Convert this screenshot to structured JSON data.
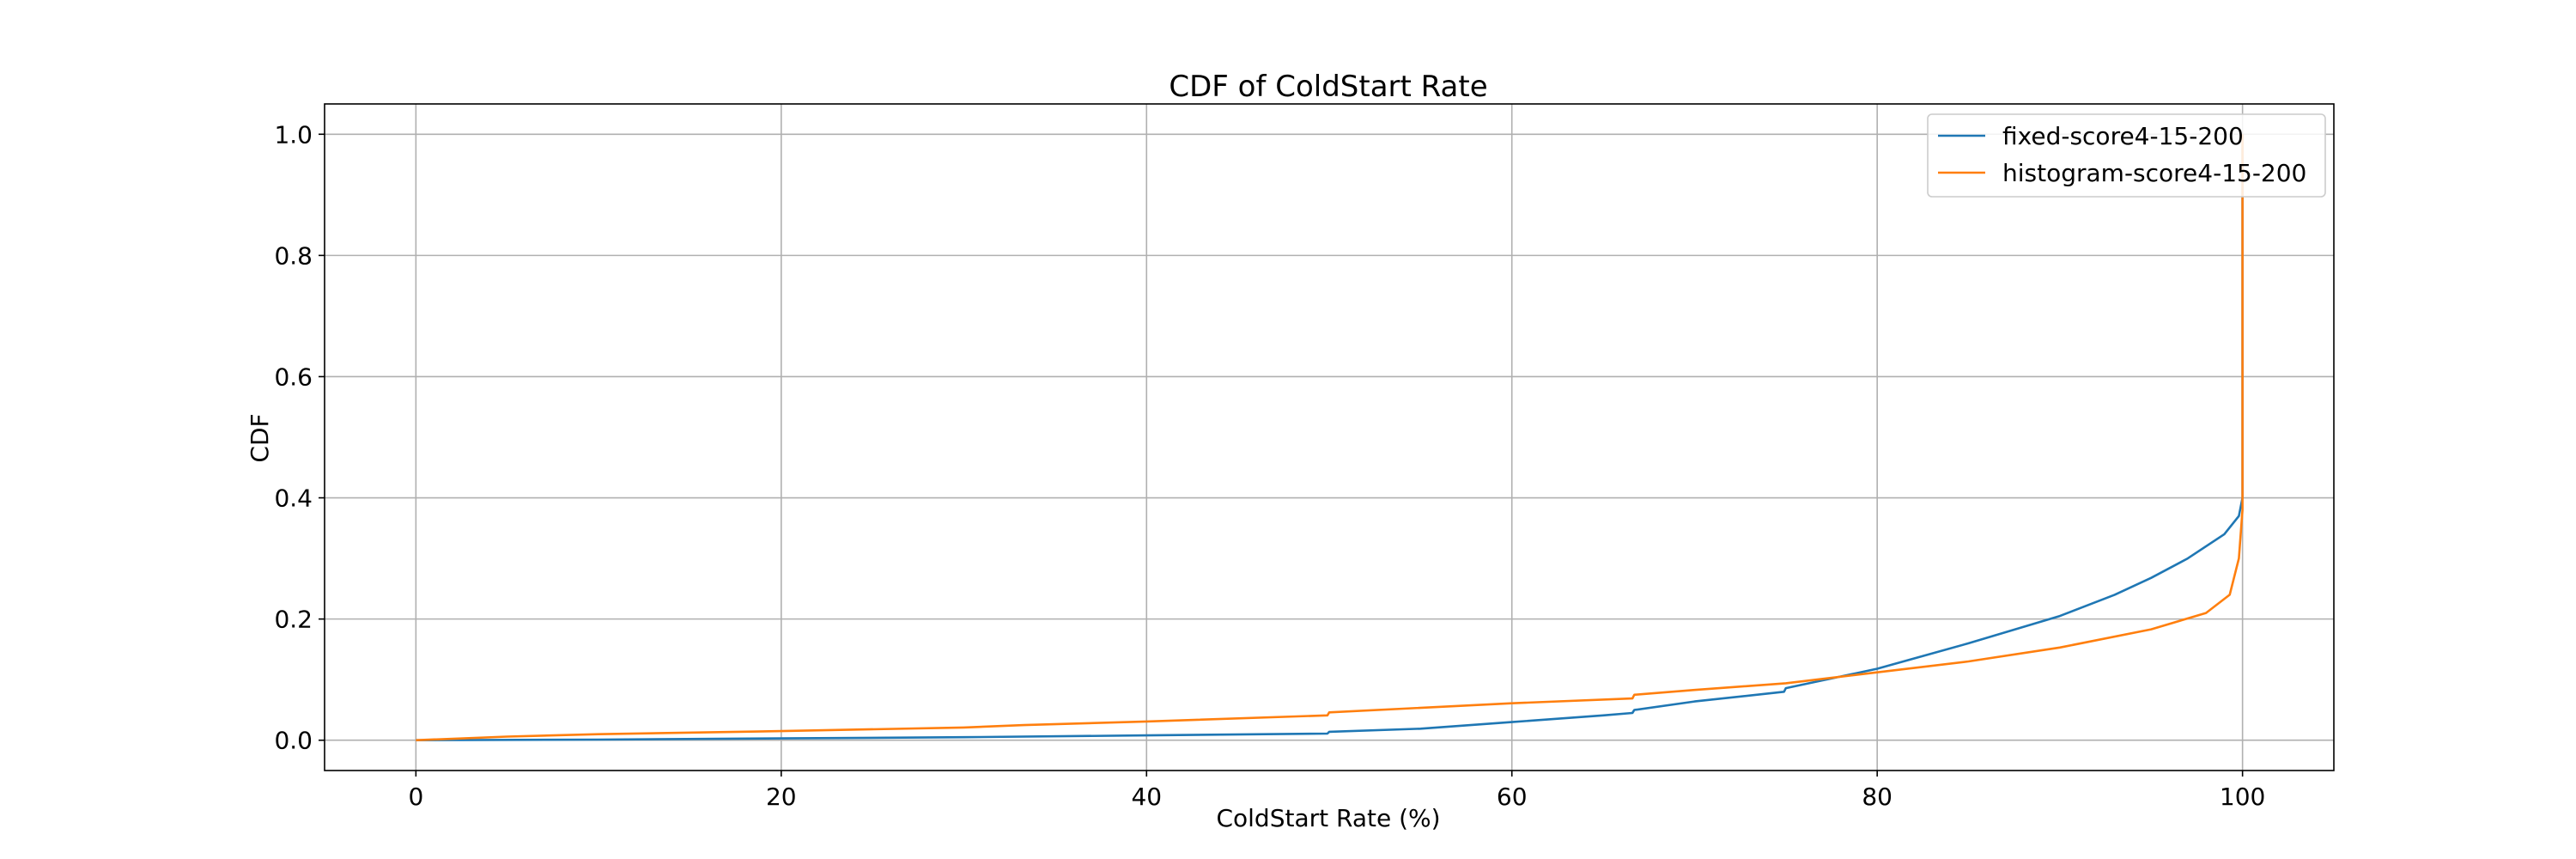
{
  "chart_data": {
    "type": "line",
    "title": "CDF of ColdStart Rate",
    "xlabel": "ColdStart Rate (%)",
    "ylabel": "CDF",
    "xlim": [
      -5,
      105
    ],
    "ylim": [
      -0.05,
      1.05
    ],
    "xticks": [
      0,
      20,
      40,
      60,
      80,
      100
    ],
    "yticks": [
      0.0,
      0.2,
      0.4,
      0.6,
      0.8,
      1.0
    ],
    "xtick_labels": [
      "0",
      "20",
      "40",
      "60",
      "80",
      "100"
    ],
    "ytick_labels": [
      "0.0",
      "0.2",
      "0.4",
      "0.6",
      "0.8",
      "1.0"
    ],
    "grid": true,
    "legend_position": "top-right",
    "series": [
      {
        "name": "fixed-score4-15-200",
        "color": "#1f77b4",
        "x": [
          0,
          10,
          20,
          30,
          40,
          49.9,
          50,
          55,
          60,
          65,
          66.6,
          66.7,
          70,
          74.9,
          75,
          80,
          85,
          90,
          93,
          95,
          97,
          99,
          99.8,
          100,
          100
        ],
        "y": [
          0.0,
          0.001,
          0.003,
          0.005,
          0.008,
          0.011,
          0.014,
          0.019,
          0.03,
          0.041,
          0.045,
          0.05,
          0.064,
          0.08,
          0.086,
          0.118,
          0.16,
          0.205,
          0.24,
          0.268,
          0.3,
          0.34,
          0.37,
          0.4,
          1.0
        ]
      },
      {
        "name": "histogram-score4-15-200",
        "color": "#ff7f0e",
        "x": [
          0,
          5,
          10,
          20,
          30,
          33.3,
          40,
          49.9,
          50,
          60,
          66.6,
          66.7,
          70,
          75,
          80,
          85,
          90,
          95,
          98,
          99.3,
          99.8,
          100,
          100
        ],
        "y": [
          0.0,
          0.006,
          0.01,
          0.015,
          0.021,
          0.025,
          0.031,
          0.041,
          0.046,
          0.061,
          0.069,
          0.075,
          0.083,
          0.094,
          0.112,
          0.13,
          0.153,
          0.183,
          0.21,
          0.24,
          0.3,
          0.38,
          1.0
        ]
      }
    ]
  }
}
